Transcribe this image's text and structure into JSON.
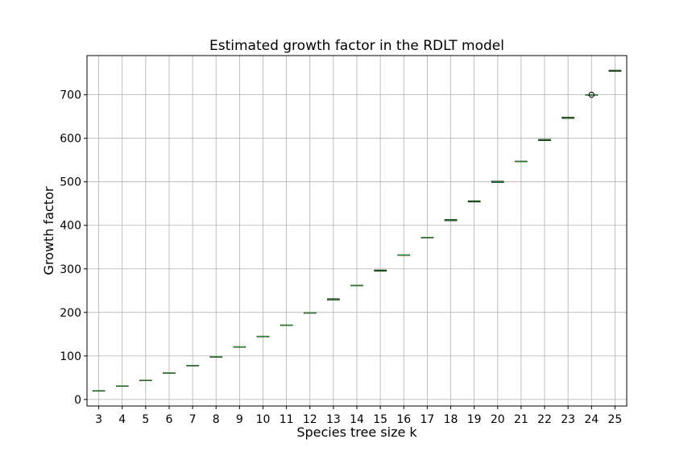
{
  "chart_data": {
    "type": "box",
    "title": "Estimated growth factor in the RDLT model",
    "xlabel": "Species tree size k",
    "ylabel": "Growth factor",
    "categories": [
      "3",
      "4",
      "5",
      "6",
      "7",
      "8",
      "9",
      "10",
      "11",
      "12",
      "13",
      "14",
      "15",
      "16",
      "17",
      "18",
      "19",
      "20",
      "21",
      "22",
      "23",
      "24",
      "25"
    ],
    "medians": [
      20,
      31,
      44,
      61,
      78,
      98,
      121,
      145,
      171,
      199,
      230,
      262,
      296,
      332,
      372,
      412,
      455,
      500,
      547,
      596,
      647,
      700,
      755
    ],
    "box_half_spread": [
      0.3,
      0.3,
      0.3,
      0.3,
      0.3,
      0.3,
      0.3,
      0.3,
      0.3,
      0.3,
      1.2,
      0.3,
      1.2,
      0.3,
      0.3,
      1.2,
      1.2,
      1.2,
      0.3,
      1.2,
      1.2,
      0.3,
      1.2
    ],
    "outliers": [
      {
        "category": "24",
        "value": 700
      }
    ],
    "ylim": [
      -15,
      790
    ],
    "yticks": [
      0,
      100,
      200,
      300,
      400,
      500,
      600,
      700
    ],
    "grid": true,
    "colors": {
      "median": "#2ca02c",
      "box": "#000000",
      "grid": "#b0b0b0"
    }
  }
}
